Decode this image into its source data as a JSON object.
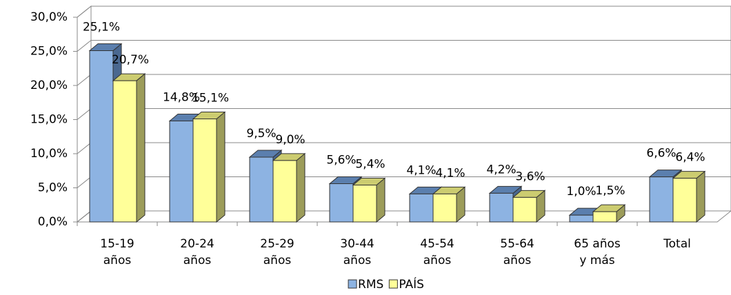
{
  "chart_data": {
    "type": "bar3d",
    "categories": [
      [
        "15-19",
        "años"
      ],
      [
        "20-24",
        "años"
      ],
      [
        "25-29",
        "años"
      ],
      [
        "30-44",
        "años"
      ],
      [
        "45-54",
        "años"
      ],
      [
        "55-64",
        "años"
      ],
      [
        "65 años",
        "y más"
      ],
      [
        "Total"
      ]
    ],
    "series": [
      {
        "name": "RMS",
        "color": "#8db3e2",
        "values": [
          25.1,
          14.8,
          9.5,
          5.6,
          4.1,
          4.2,
          1.0,
          6.6
        ],
        "value_labels": [
          "25,1%",
          "14,8%",
          "9,5%",
          "5,6%",
          "4,1%",
          "4,2%",
          "1,0%",
          "6,6%"
        ]
      },
      {
        "name": "PAÍS",
        "color": "#ffff99",
        "values": [
          20.7,
          15.1,
          9.0,
          5.4,
          4.1,
          3.6,
          1.5,
          6.4
        ],
        "value_labels": [
          "20,7%",
          "15,1%",
          "9,0%",
          "5,4%",
          "4,1%",
          "3,6%",
          "1,5%",
          "6,4%"
        ]
      }
    ],
    "ylim": [
      0,
      30
    ],
    "yticks": [
      {
        "value": 0,
        "label": "0,0%"
      },
      {
        "value": 5,
        "label": "5,0%"
      },
      {
        "value": 10,
        "label": "10,0%"
      },
      {
        "value": 15,
        "label": "15,0%"
      },
      {
        "value": 20,
        "label": "20,0%"
      },
      {
        "value": 25,
        "label": "25,0%"
      },
      {
        "value": 30,
        "label": "30,0%"
      }
    ],
    "grid": true,
    "legend": "bottom"
  }
}
